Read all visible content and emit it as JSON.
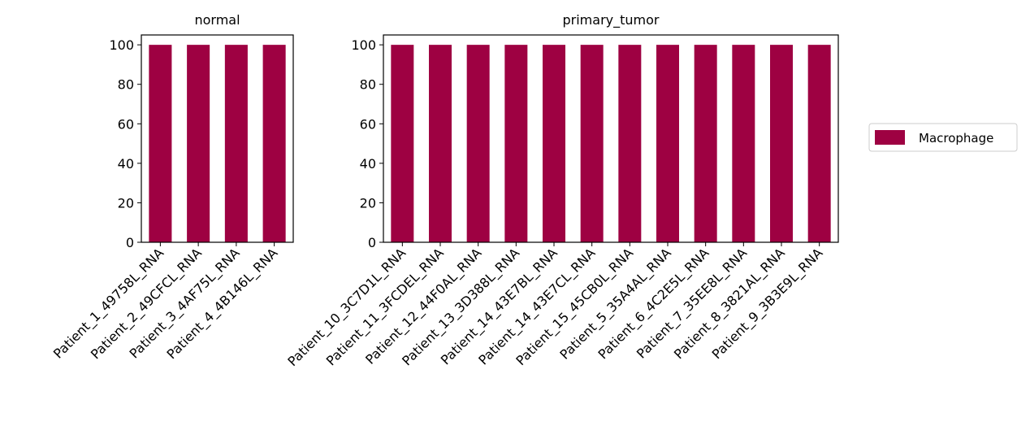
{
  "chart_data": [
    {
      "type": "bar",
      "title": "normal",
      "categories": [
        "Patient_1_49758L_RNA",
        "Patient_2_49CFCL_RNA",
        "Patient_3_4AF75L_RNA",
        "Patient_4_4B146L_RNA"
      ],
      "series": [
        {
          "color": "#9e0142",
          "values": [
            100,
            100,
            100,
            100
          ]
        }
      ],
      "ylim": [
        0,
        105
      ],
      "yticks": [
        0,
        20,
        40,
        60,
        80,
        100
      ]
    },
    {
      "type": "bar",
      "title": "primary_tumor",
      "categories": [
        "Patient_10_3C7D1L_RNA",
        "Patient_11_3FCDEL_RNA",
        "Patient_12_44F0AL_RNA",
        "Patient_13_3D388L_RNA",
        "Patient_14_43E7BL_RNA",
        "Patient_14_43E7CL_RNA",
        "Patient_15_45CB0L_RNA",
        "Patient_5_35A4AL_RNA",
        "Patient_6_4C2E5L_RNA",
        "Patient_7_35EE8L_RNA",
        "Patient_8_3821AL_RNA",
        "Patient_9_3B3E9L_RNA"
      ],
      "series": [
        {
          "name": "Macrophage",
          "color": "#9e0142",
          "values": [
            100,
            100,
            100,
            100,
            100,
            100,
            100,
            100,
            100,
            100,
            100,
            100
          ]
        }
      ],
      "ylim": [
        0,
        105
      ],
      "yticks": [
        0,
        20,
        40,
        60,
        80,
        100
      ],
      "legend": "right"
    }
  ]
}
